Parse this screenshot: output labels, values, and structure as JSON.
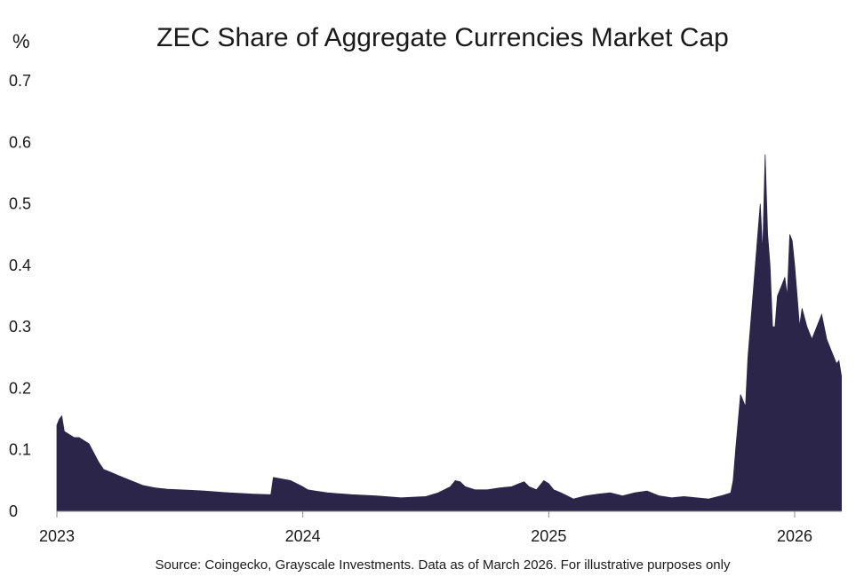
{
  "chart_data": {
    "type": "area",
    "title": "ZEC Share of Aggregate Currencies Market Cap",
    "ylabel": "%",
    "xlabel": "",
    "source": "Source: Coingecko, Grayscale Investments. Data as of March 2026. For illustrative purposes only",
    "ylim": [
      0,
      0.7
    ],
    "yticks": [
      "0",
      "0.1",
      "0.2",
      "0.3",
      "0.4",
      "0.5",
      "0.6",
      "0.7"
    ],
    "xlim": [
      2023.0,
      2026.2
    ],
    "xticks": [
      {
        "label": "2023",
        "value": 2023.0
      },
      {
        "label": "2024",
        "value": 2024.0
      },
      {
        "label": "2025",
        "value": 2025.0
      },
      {
        "label": "2026",
        "value": 2026.0
      }
    ],
    "grid": false,
    "legend": "none",
    "color": "#2b2649",
    "series": [
      {
        "x": [
          2023.0,
          2023.01,
          2023.02,
          2023.03,
          2023.05,
          2023.07,
          2023.09,
          2023.11,
          2023.13,
          2023.15,
          2023.17,
          2023.19,
          2023.21,
          2023.25,
          2023.3,
          2023.35,
          2023.4,
          2023.45,
          2023.5,
          2023.55,
          2023.6,
          2023.7,
          2023.8,
          2023.87,
          2023.88,
          2023.95,
          2024.0,
          2024.02,
          2024.05,
          2024.1,
          2024.2,
          2024.3,
          2024.4,
          2024.5,
          2024.55,
          2024.6,
          2024.62,
          2024.64,
          2024.66,
          2024.7,
          2024.75,
          2024.8,
          2024.85,
          2024.88,
          2024.9,
          2024.92,
          2024.95,
          2024.98,
          2025.0,
          2025.02,
          2025.05,
          2025.1,
          2025.15,
          2025.2,
          2025.25,
          2025.3,
          2025.35,
          2025.4,
          2025.45,
          2025.5,
          2025.55,
          2025.6,
          2025.65,
          2025.7,
          2025.74,
          2025.75,
          2025.76,
          2025.78,
          2025.8,
          2025.81,
          2025.82,
          2025.83,
          2025.85,
          2025.86,
          2025.87,
          2025.88,
          2025.89,
          2025.9,
          2025.91,
          2025.92,
          2025.93,
          2025.95,
          2025.96,
          2025.97,
          2025.98,
          2025.99,
          2026.0,
          2026.01,
          2026.02,
          2026.03,
          2026.05,
          2026.07,
          2026.09,
          2026.11,
          2026.12,
          2026.13,
          2026.14,
          2026.15,
          2026.16,
          2026.17,
          2026.18,
          2026.19
        ],
        "y": [
          0.14,
          0.15,
          0.155,
          0.13,
          0.125,
          0.12,
          0.12,
          0.115,
          0.11,
          0.095,
          0.08,
          0.068,
          0.065,
          0.058,
          0.05,
          0.042,
          0.038,
          0.036,
          0.035,
          0.034,
          0.033,
          0.03,
          0.028,
          0.027,
          0.055,
          0.05,
          0.04,
          0.035,
          0.033,
          0.03,
          0.027,
          0.025,
          0.022,
          0.024,
          0.03,
          0.04,
          0.05,
          0.048,
          0.04,
          0.035,
          0.035,
          0.038,
          0.04,
          0.045,
          0.048,
          0.04,
          0.035,
          0.05,
          0.045,
          0.035,
          0.03,
          0.02,
          0.025,
          0.028,
          0.03,
          0.025,
          0.03,
          0.033,
          0.025,
          0.022,
          0.024,
          0.022,
          0.02,
          0.025,
          0.03,
          0.05,
          0.1,
          0.19,
          0.17,
          0.25,
          0.3,
          0.35,
          0.45,
          0.5,
          0.42,
          0.58,
          0.45,
          0.4,
          0.3,
          0.3,
          0.35,
          0.37,
          0.38,
          0.35,
          0.45,
          0.44,
          0.4,
          0.35,
          0.3,
          0.33,
          0.3,
          0.28,
          0.3,
          0.32,
          0.3,
          0.28,
          0.27,
          0.26,
          0.25,
          0.24,
          0.245,
          0.22
        ]
      }
    ]
  }
}
